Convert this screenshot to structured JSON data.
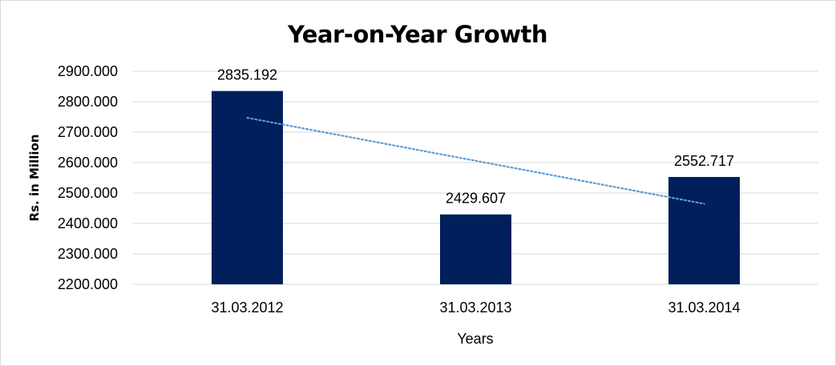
{
  "chart_data": {
    "type": "bar",
    "title": "Year-on-Year Growth",
    "xlabel": "Years",
    "ylabel": "Rs. in Million",
    "categories": [
      "31.03.2012",
      "31.03.2013",
      "31.03.2014"
    ],
    "values": [
      2835.192,
      2429.607,
      2552.717
    ],
    "data_labels": [
      "2835.192",
      "2429.607",
      "2552.717"
    ],
    "ylim": [
      2200,
      2900
    ],
    "yticks": [
      2200,
      2300,
      2400,
      2500,
      2600,
      2700,
      2800,
      2900
    ],
    "ytick_labels": [
      "2200.000",
      "2300.000",
      "2400.000",
      "2500.000",
      "2600.000",
      "2700.000",
      "2800.000",
      "2900.000"
    ],
    "grid": true,
    "trendline": "linear",
    "bar_color": "#001f5b",
    "trendline_color": "#5b9bd5"
  }
}
